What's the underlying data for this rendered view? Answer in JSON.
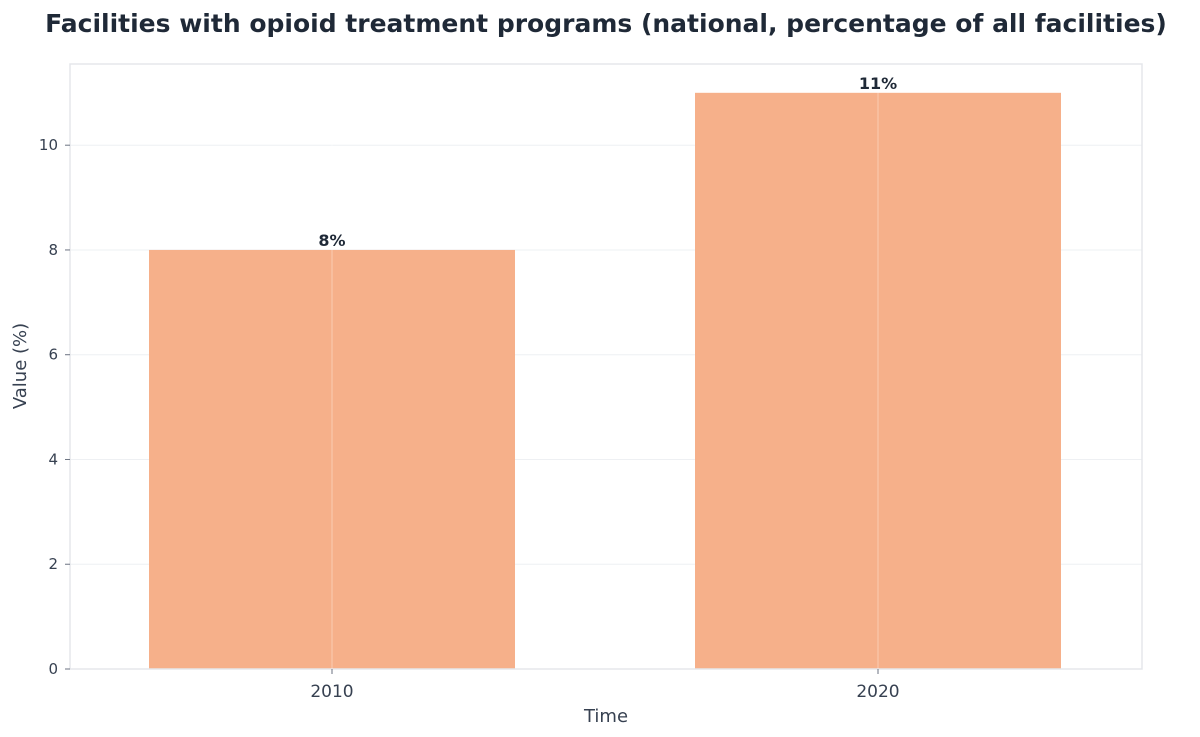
{
  "chart_data": {
    "type": "bar",
    "title": "Facilities with opioid treatment programs (national, percentage of all facilities)",
    "xlabel": "Time",
    "ylabel": "Value (%)",
    "categories": [
      "2010",
      "2020"
    ],
    "values": [
      8,
      11
    ],
    "data_labels": [
      "8%",
      "11%"
    ],
    "ylim": [
      0,
      11.55
    ],
    "yticks": [
      0,
      2,
      4,
      6,
      8,
      10
    ],
    "grid": true,
    "legend": "none",
    "colors": {
      "bar": "#f6b08a",
      "grid": "#eef0f3",
      "frame": "#e5e7eb",
      "text": "#1f2937"
    }
  }
}
